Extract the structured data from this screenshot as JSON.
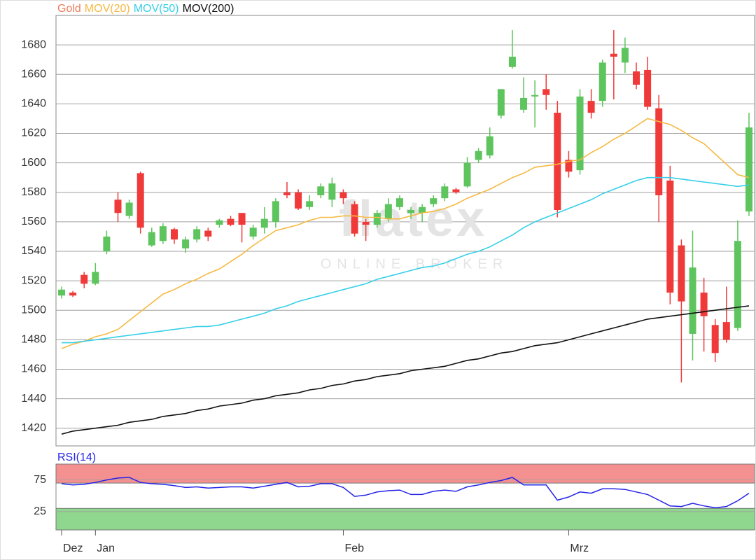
{
  "chart_data": [
    {
      "type": "candlestick",
      "name": "Gold",
      "color": "#ee7b5a",
      "up_color": "#5ec45e",
      "down_color": "#f03a3a",
      "watermark": "flatex",
      "watermark_subtitle": "ONLINE BROKER",
      "categories": [
        "Dez",
        null,
        null,
        "Jan",
        null,
        null,
        null,
        null,
        null,
        null,
        null,
        null,
        null,
        null,
        null,
        null,
        null,
        null,
        null,
        null,
        null,
        null,
        null,
        null,
        null,
        "Feb",
        null,
        null,
        null,
        null,
        null,
        null,
        null,
        null,
        null,
        null,
        null,
        null,
        null,
        null,
        null,
        null,
        null,
        null,
        null,
        "Mrz",
        null,
        null,
        null,
        null,
        null,
        null,
        null,
        null,
        null,
        null,
        null,
        null,
        null,
        null,
        null,
        null
      ],
      "open": [
        1510,
        1512,
        1524,
        1518,
        1540,
        1575,
        1564,
        1593,
        1544,
        1547,
        1555,
        1542,
        1548,
        1554,
        1558,
        1562,
        1566,
        1550,
        1556,
        1560,
        1580,
        1580,
        1570,
        1578,
        1575,
        1580,
        1572,
        1560,
        1558,
        1562,
        1570,
        1566,
        1566,
        1572,
        1576,
        1582,
        1584,
        1602,
        1605,
        1632,
        1665,
        1636,
        1645,
        1650,
        1634,
        1602,
        1595,
        1642,
        1642,
        1674,
        1668,
        1662,
        1663,
        1637,
        1588,
        1544,
        1484,
        1512,
        1490,
        1492,
        1488,
        1567
      ],
      "high": [
        1516,
        1513,
        1526,
        1532,
        1554,
        1580,
        1575,
        1594,
        1556,
        1559,
        1556,
        1550,
        1557,
        1556,
        1562,
        1564,
        1566,
        1558,
        1570,
        1576,
        1587,
        1582,
        1578,
        1586,
        1590,
        1582,
        1574,
        1562,
        1568,
        1576,
        1578,
        1570,
        1572,
        1578,
        1586,
        1583,
        1604,
        1610,
        1624,
        1650,
        1690,
        1658,
        1656,
        1660,
        1642,
        1608,
        1650,
        1650,
        1670,
        1690,
        1685,
        1668,
        1672,
        1646,
        1598,
        1548,
        1554,
        1522,
        1494,
        1516,
        1561,
        1634
      ],
      "low": [
        1508,
        1509,
        1515,
        1517,
        1538,
        1560,
        1562,
        1552,
        1543,
        1545,
        1545,
        1539,
        1546,
        1547,
        1556,
        1557,
        1546,
        1548,
        1552,
        1556,
        1576,
        1568,
        1568,
        1576,
        1570,
        1572,
        1550,
        1547,
        1556,
        1560,
        1568,
        1562,
        1560,
        1570,
        1574,
        1579,
        1583,
        1600,
        1603,
        1630,
        1664,
        1634,
        1624,
        1636,
        1563,
        1590,
        1592,
        1630,
        1638,
        1643,
        1661,
        1650,
        1636,
        1560,
        1504,
        1451,
        1466,
        1472,
        1465,
        1478,
        1486,
        1564
      ],
      "close": [
        1514,
        1510,
        1518,
        1526,
        1550,
        1566,
        1573,
        1556,
        1553,
        1557,
        1548,
        1548,
        1555,
        1550,
        1561,
        1558,
        1558,
        1556,
        1562,
        1574,
        1578,
        1569,
        1574,
        1584,
        1586,
        1576,
        1552,
        1558,
        1566,
        1572,
        1576,
        1568,
        1570,
        1576,
        1584,
        1580,
        1600,
        1608,
        1618,
        1650,
        1672,
        1644,
        1646,
        1646,
        1568,
        1594,
        1645,
        1634,
        1668,
        1672,
        1678,
        1653,
        1638,
        1578,
        1512,
        1506,
        1529,
        1496,
        1471,
        1480,
        1547,
        1624
      ],
      "series": [
        {
          "name": "MOV(20)",
          "color": "#f5b942",
          "values": [
            1474,
            1477,
            1479,
            1482,
            1484,
            1487,
            1493,
            1499,
            1505,
            1511,
            1514,
            1518,
            1521,
            1525,
            1528,
            1533,
            1538,
            1544,
            1549,
            1554,
            1556,
            1558,
            1561,
            1563,
            1563,
            1564,
            1564,
            1563,
            1563,
            1562,
            1562,
            1564,
            1566,
            1567,
            1569,
            1572,
            1576,
            1579,
            1582,
            1586,
            1590,
            1593,
            1597,
            1598,
            1599,
            1601,
            1602,
            1607,
            1611,
            1616,
            1620,
            1625,
            1630,
            1628,
            1626,
            1622,
            1617,
            1613,
            1606,
            1599,
            1592,
            1590
          ]
        },
        {
          "name": "MOV(50)",
          "color": "#35cfe8",
          "values": [
            1478,
            1478,
            1479,
            1480,
            1481,
            1482,
            1483,
            1484,
            1485,
            1486,
            1487,
            1488,
            1489,
            1489,
            1490,
            1492,
            1494,
            1496,
            1498,
            1501,
            1503,
            1506,
            1508,
            1510,
            1512,
            1514,
            1516,
            1518,
            1521,
            1523,
            1525,
            1527,
            1529,
            1530,
            1532,
            1535,
            1538,
            1540,
            1543,
            1547,
            1551,
            1556,
            1560,
            1563,
            1566,
            1569,
            1572,
            1575,
            1579,
            1582,
            1585,
            1588,
            1590,
            1590,
            1590,
            1589,
            1588,
            1587,
            1586,
            1585,
            1584,
            1585
          ]
        },
        {
          "name": "MOV(200)",
          "color": "#111111",
          "values": [
            1416,
            1418,
            1419,
            1420,
            1421,
            1422,
            1424,
            1425,
            1426,
            1428,
            1429,
            1430,
            1432,
            1433,
            1435,
            1436,
            1437,
            1439,
            1440,
            1442,
            1443,
            1444,
            1446,
            1447,
            1449,
            1450,
            1452,
            1453,
            1455,
            1456,
            1457,
            1459,
            1460,
            1461,
            1462,
            1464,
            1466,
            1467,
            1469,
            1471,
            1472,
            1474,
            1476,
            1477,
            1478,
            1480,
            1482,
            1484,
            1486,
            1488,
            1490,
            1492,
            1494,
            1495,
            1496,
            1497,
            1498,
            1499,
            1500,
            1501,
            1502,
            1503
          ]
        }
      ],
      "ylim": [
        1408,
        1700
      ],
      "yticks": [
        1420,
        1440,
        1460,
        1480,
        1500,
        1520,
        1540,
        1560,
        1580,
        1600,
        1620,
        1640,
        1660,
        1680
      ],
      "grid": true
    },
    {
      "type": "line",
      "title": "RSI(14)",
      "color": "#2323e8",
      "values": [
        69,
        67,
        68,
        71,
        75,
        78,
        79,
        71,
        69,
        68,
        66,
        63,
        64,
        62,
        63,
        64,
        64,
        62,
        65,
        68,
        71,
        64,
        65,
        69,
        69,
        63,
        49,
        51,
        56,
        58,
        59,
        52,
        52,
        57,
        59,
        57,
        64,
        67,
        71,
        74,
        79,
        67,
        67,
        67,
        43,
        48,
        56,
        54,
        61,
        61,
        60,
        56,
        52,
        43,
        34,
        33,
        38,
        34,
        31,
        33,
        42,
        54
      ],
      "bands": [
        {
          "from": 70,
          "to": 100,
          "color": "#f59090"
        },
        {
          "from": -4,
          "to": 30,
          "color": "#8fd68f"
        }
      ],
      "ylim": [
        -4,
        100
      ],
      "yticks": [
        25,
        75
      ],
      "grid": true
    }
  ]
}
